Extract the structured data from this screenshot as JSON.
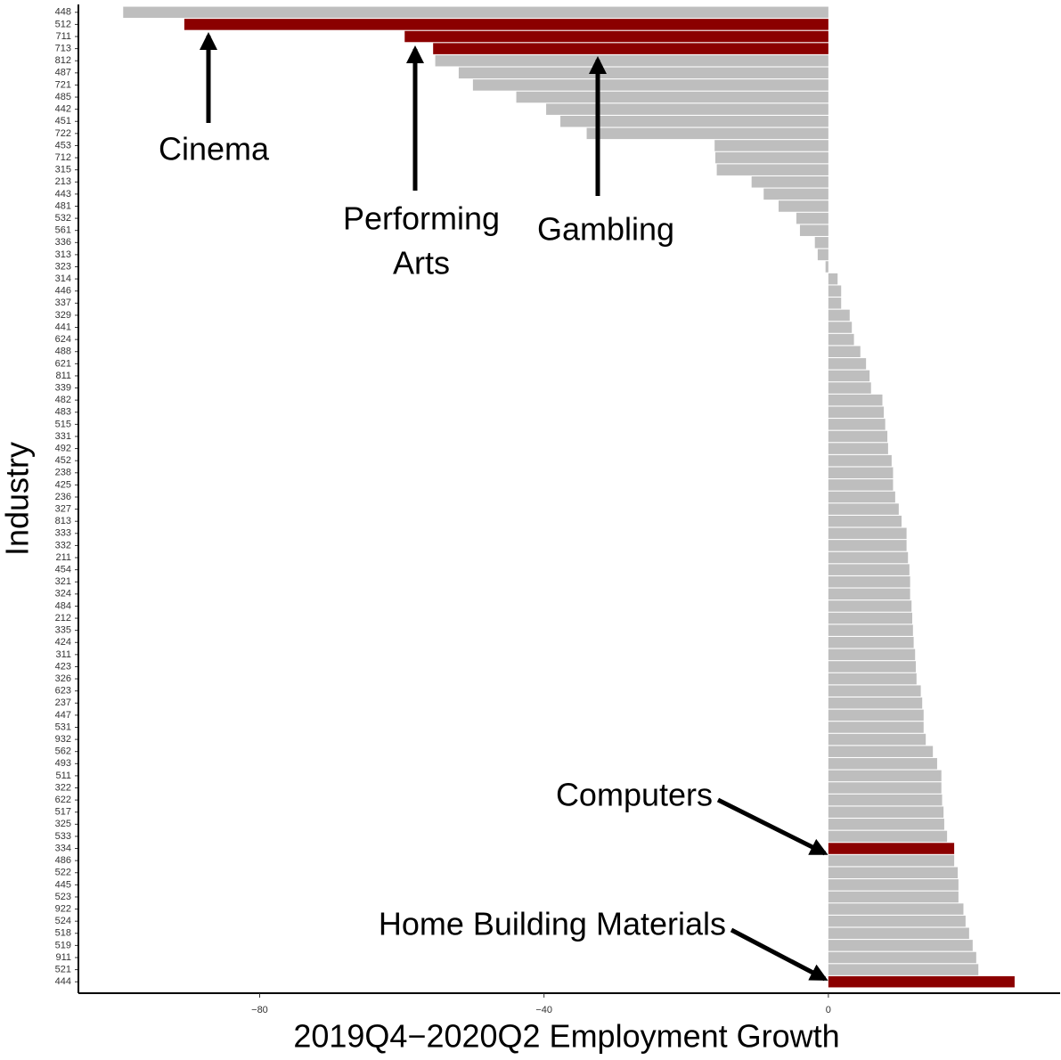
{
  "chart_data": {
    "type": "hbar",
    "x_label": "2019Q4−2020Q2 Employment Growth",
    "y_label": "Industry",
    "categories": [
      "448",
      "512",
      "711",
      "713",
      "812",
      "487",
      "721",
      "485",
      "442",
      "451",
      "722",
      "453",
      "712",
      "315",
      "213",
      "443",
      "481",
      "532",
      "561",
      "336",
      "313",
      "323",
      "314",
      "446",
      "337",
      "329",
      "441",
      "624",
      "488",
      "621",
      "811",
      "339",
      "482",
      "483",
      "515",
      "331",
      "492",
      "452",
      "238",
      "425",
      "236",
      "327",
      "813",
      "333",
      "332",
      "211",
      "454",
      "321",
      "324",
      "484",
      "212",
      "335",
      "424",
      "311",
      "423",
      "326",
      "623",
      "237",
      "447",
      "531",
      "932",
      "562",
      "493",
      "511",
      "322",
      "622",
      "517",
      "325",
      "533",
      "334",
      "486",
      "522",
      "445",
      "523",
      "922",
      "524",
      "518",
      "519",
      "911",
      "521",
      "444"
    ],
    "values": [
      -99.2,
      -90.6,
      -59.6,
      -55.6,
      -55.3,
      -52.0,
      -50.0,
      -43.9,
      -39.7,
      -37.7,
      -34.0,
      -16.0,
      -15.9,
      -15.7,
      -10.8,
      -9.1,
      -7.0,
      -4.5,
      -4.0,
      -1.9,
      -1.5,
      -0.4,
      1.3,
      1.8,
      1.8,
      3.0,
      3.3,
      3.6,
      4.5,
      5.3,
      5.8,
      6.0,
      7.6,
      7.8,
      8.0,
      8.3,
      8.4,
      8.9,
      9.1,
      9.1,
      9.4,
      9.9,
      10.3,
      11.0,
      11.0,
      11.2,
      11.4,
      11.5,
      11.5,
      11.7,
      11.8,
      11.9,
      12.0,
      12.2,
      12.3,
      12.4,
      13.0,
      13.2,
      13.4,
      13.4,
      13.7,
      14.7,
      15.3,
      15.9,
      15.9,
      16.0,
      16.2,
      16.3,
      16.7,
      17.7,
      17.7,
      18.2,
      18.3,
      18.3,
      19.0,
      19.3,
      19.8,
      20.3,
      20.8,
      21.1,
      26.2
    ],
    "color": "#bebebe",
    "highlight_color": "#8b0000",
    "highlight": [
      1,
      2,
      3,
      69,
      80
    ],
    "xlim": [
      -105.5,
      32.6
    ],
    "xticks": [
      {
        "value": -80,
        "label": "−80"
      },
      {
        "value": -40,
        "label": "−40"
      },
      0
    ],
    "annotations": [
      {
        "lines": [
          "Cinema"
        ]
      },
      {
        "lines": [
          "Performing",
          "Arts"
        ]
      },
      {
        "lines": [
          "Gambling"
        ]
      },
      {
        "lines": [
          "Computers"
        ]
      },
      {
        "lines": [
          "Home Building Materials"
        ]
      }
    ]
  }
}
